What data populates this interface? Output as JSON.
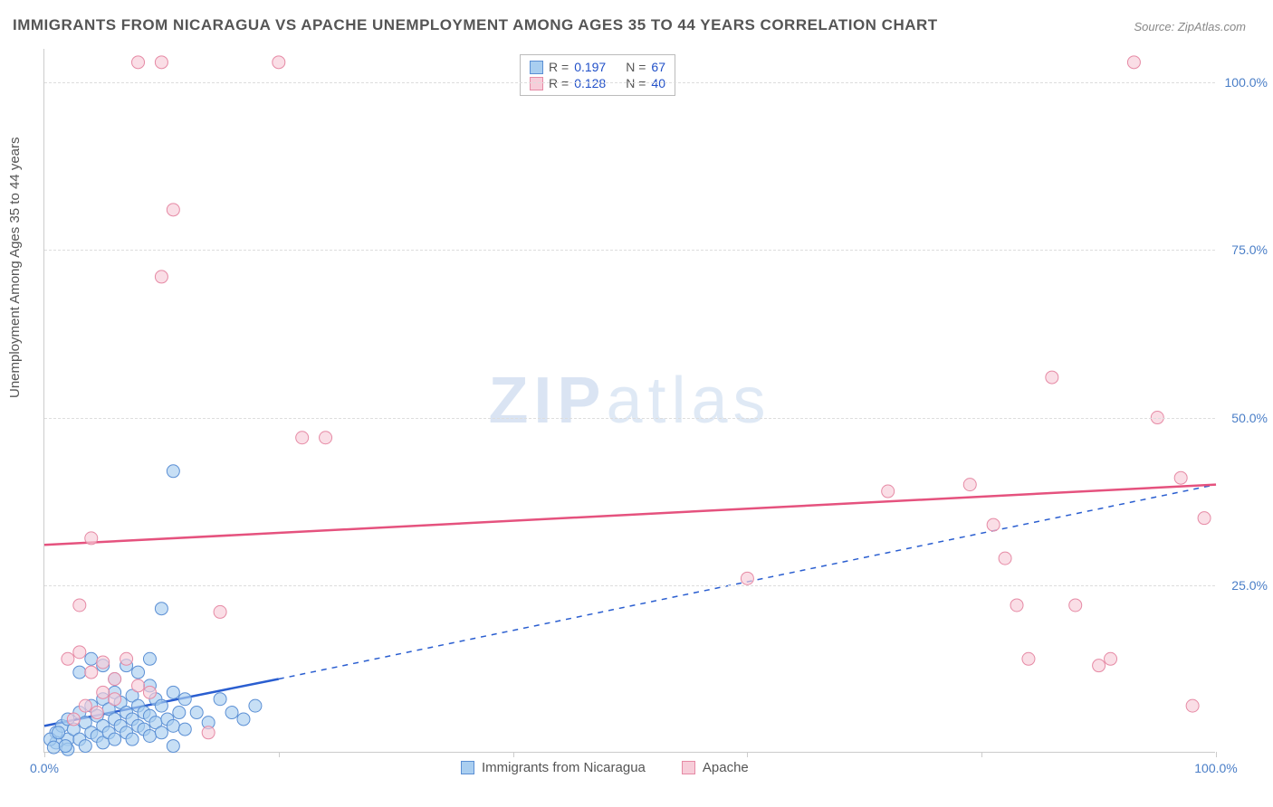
{
  "title": "IMMIGRANTS FROM NICARAGUA VS APACHE UNEMPLOYMENT AMONG AGES 35 TO 44 YEARS CORRELATION CHART",
  "source": "Source: ZipAtlas.com",
  "ylabel": "Unemployment Among Ages 35 to 44 years",
  "watermark_bold": "ZIP",
  "watermark_thin": "atlas",
  "chart": {
    "type": "scatter",
    "background_color": "#ffffff",
    "grid_color": "#dddddd",
    "border_color": "#cccccc",
    "xlim": [
      0,
      100
    ],
    "ylim": [
      0,
      105
    ],
    "xtick_positions": [
      0,
      20,
      40,
      60,
      80,
      100
    ],
    "xtick_labels": [
      "0.0%",
      "",
      "",
      "",
      "",
      "100.0%"
    ],
    "ytick_positions": [
      25,
      50,
      75,
      100
    ],
    "ytick_labels": [
      "25.0%",
      "50.0%",
      "75.0%",
      "100.0%"
    ],
    "label_fontsize": 15,
    "tick_fontsize": 14,
    "tick_color": "#4a7ec7"
  },
  "stats": {
    "series1": {
      "R_label": "R =",
      "R": "0.197",
      "N_label": "N =",
      "N": "67"
    },
    "series2": {
      "R_label": "R =",
      "R": "0.128",
      "N_label": "N =",
      "N": "40"
    }
  },
  "series": [
    {
      "name": "Immigrants from Nicaragua",
      "marker_fill": "#a9cef0",
      "marker_stroke": "#5b8fd4",
      "marker_radius": 7,
      "line_color": "#2a5ed0",
      "line_width": 2.5,
      "trend_solid": {
        "x1": 0,
        "y1": 4,
        "x2": 20,
        "y2": 11
      },
      "trend_dashed": {
        "x1": 20,
        "y1": 11,
        "x2": 100,
        "y2": 40
      },
      "points": [
        [
          1,
          3
        ],
        [
          1.5,
          4
        ],
        [
          2,
          2
        ],
        [
          2,
          5
        ],
        [
          2.5,
          3.5
        ],
        [
          3,
          2
        ],
        [
          3,
          6
        ],
        [
          3.5,
          1
        ],
        [
          3.5,
          4.5
        ],
        [
          4,
          3
        ],
        [
          4,
          7
        ],
        [
          4.5,
          2.5
        ],
        [
          4.5,
          5.5
        ],
        [
          5,
          1.5
        ],
        [
          5,
          4
        ],
        [
          5,
          8
        ],
        [
          5.5,
          3
        ],
        [
          5.5,
          6.5
        ],
        [
          6,
          2
        ],
        [
          6,
          5
        ],
        [
          6,
          9
        ],
        [
          6.5,
          4
        ],
        [
          6.5,
          7.5
        ],
        [
          7,
          3
        ],
        [
          7,
          6
        ],
        [
          7.5,
          2
        ],
        [
          7.5,
          5
        ],
        [
          7.5,
          8.5
        ],
        [
          8,
          4
        ],
        [
          8,
          7
        ],
        [
          8.5,
          3.5
        ],
        [
          8.5,
          6
        ],
        [
          9,
          2.5
        ],
        [
          9,
          5.5
        ],
        [
          9,
          10
        ],
        [
          9.5,
          4.5
        ],
        [
          9.5,
          8
        ],
        [
          10,
          3
        ],
        [
          10,
          7
        ],
        [
          10.5,
          5
        ],
        [
          11,
          4
        ],
        [
          11,
          9
        ],
        [
          11.5,
          6
        ],
        [
          12,
          3.5
        ],
        [
          12,
          8
        ],
        [
          10,
          21.5
        ],
        [
          11,
          42
        ],
        [
          13,
          6
        ],
        [
          14,
          4.5
        ],
        [
          15,
          8
        ],
        [
          16,
          6
        ],
        [
          17,
          5
        ],
        [
          18,
          7
        ],
        [
          5,
          13
        ],
        [
          4,
          14
        ],
        [
          3,
          12
        ],
        [
          6,
          11
        ],
        [
          7,
          13
        ],
        [
          8,
          12
        ],
        [
          9,
          14
        ],
        [
          2,
          0.5
        ],
        [
          1,
          1.5
        ],
        [
          0.5,
          2
        ],
        [
          0.8,
          0.8
        ],
        [
          1.2,
          3
        ],
        [
          1.8,
          1
        ],
        [
          11,
          1
        ]
      ]
    },
    {
      "name": "Apache",
      "marker_fill": "#f7cdd9",
      "marker_stroke": "#e68aa5",
      "marker_radius": 7,
      "line_color": "#e5527e",
      "line_width": 2.5,
      "trend_solid": {
        "x1": 0,
        "y1": 31,
        "x2": 100,
        "y2": 40
      },
      "points": [
        [
          2,
          14
        ],
        [
          3,
          15
        ],
        [
          4,
          12
        ],
        [
          5,
          13.5
        ],
        [
          6,
          11
        ],
        [
          7,
          14
        ],
        [
          8,
          10
        ],
        [
          3,
          22
        ],
        [
          4,
          32
        ],
        [
          8,
          103
        ],
        [
          10,
          103
        ],
        [
          11,
          81
        ],
        [
          10,
          71
        ],
        [
          15,
          21
        ],
        [
          20,
          103
        ],
        [
          22,
          47
        ],
        [
          24,
          47
        ],
        [
          2.5,
          5
        ],
        [
          3.5,
          7
        ],
        [
          4.5,
          6
        ],
        [
          14,
          3
        ],
        [
          60,
          26
        ],
        [
          72,
          39
        ],
        [
          79,
          40
        ],
        [
          81,
          34
        ],
        [
          82,
          29
        ],
        [
          83,
          22
        ],
        [
          84,
          14
        ],
        [
          86,
          56
        ],
        [
          88,
          22
        ],
        [
          91,
          14
        ],
        [
          93,
          103
        ],
        [
          95,
          50
        ],
        [
          97,
          41
        ],
        [
          99,
          35
        ],
        [
          98,
          7
        ],
        [
          90,
          13
        ],
        [
          5,
          9
        ],
        [
          6,
          8
        ],
        [
          9,
          9
        ]
      ]
    }
  ],
  "bottom_legend": {
    "item1": "Immigrants from Nicaragua",
    "item2": "Apache"
  }
}
